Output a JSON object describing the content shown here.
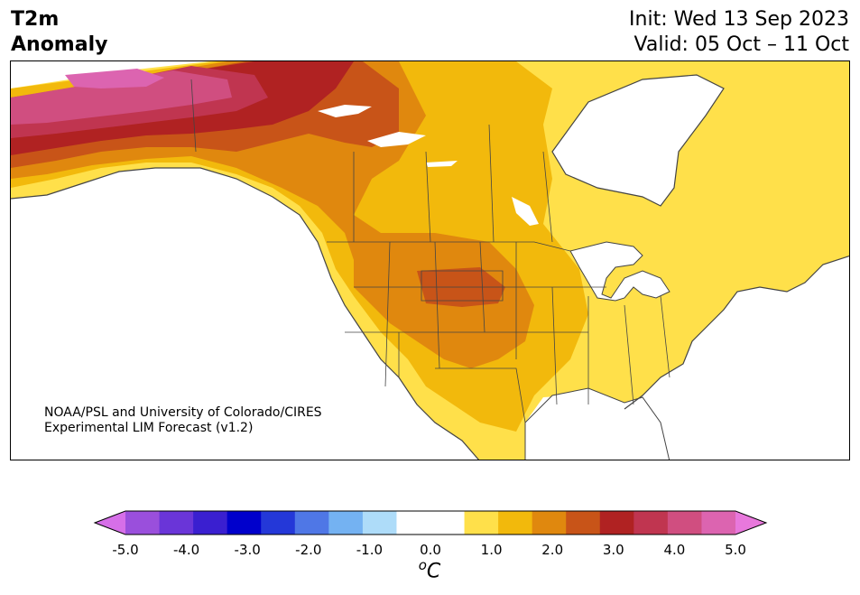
{
  "header": {
    "title_line1": "T2m",
    "title_line2": "Anomaly",
    "init": "Init: Wed 13 Sep 2023",
    "valid": "Valid: 05 Oct – 11 Oct"
  },
  "credit": {
    "line1": "NOAA/PSL and University of Colorado/CIRES",
    "line2": "Experimental LIM Forecast (v1.2)"
  },
  "colorbar": {
    "ticks": [
      "-5.0",
      "-4.0",
      "-3.0",
      "-2.0",
      "-1.0",
      "0.0",
      "1.0",
      "2.0",
      "3.0",
      "4.0",
      "5.0"
    ],
    "unit_base": "C",
    "unit_sup": "o",
    "colors": [
      "#d66fe8",
      "#9a4fdc",
      "#6a35d8",
      "#3a1fd0",
      "#0000cc",
      "#2438d8",
      "#4f77e6",
      "#74b2f2",
      "#aedcf9",
      "#ffffff",
      "#ffffff",
      "#ffe04a",
      "#f2b90c",
      "#e0880e",
      "#c85418",
      "#b02222",
      "#c03550",
      "#d04e80",
      "#dc64b0",
      "#e878dc"
    ]
  },
  "map": {
    "background": "#ffffff",
    "anomaly_colors": {
      "warm_1_1p5": "#ffe04a",
      "warm_1p5_2": "#f2b90c",
      "warm_2_2p5": "#e0880e",
      "warm_2p5_3": "#c85418",
      "warm_3_3p5": "#b02222",
      "warm_3p5_4": "#c03550",
      "warm_4_4p5": "#d04e80",
      "warm_4p5_5": "#dc64b0"
    }
  }
}
